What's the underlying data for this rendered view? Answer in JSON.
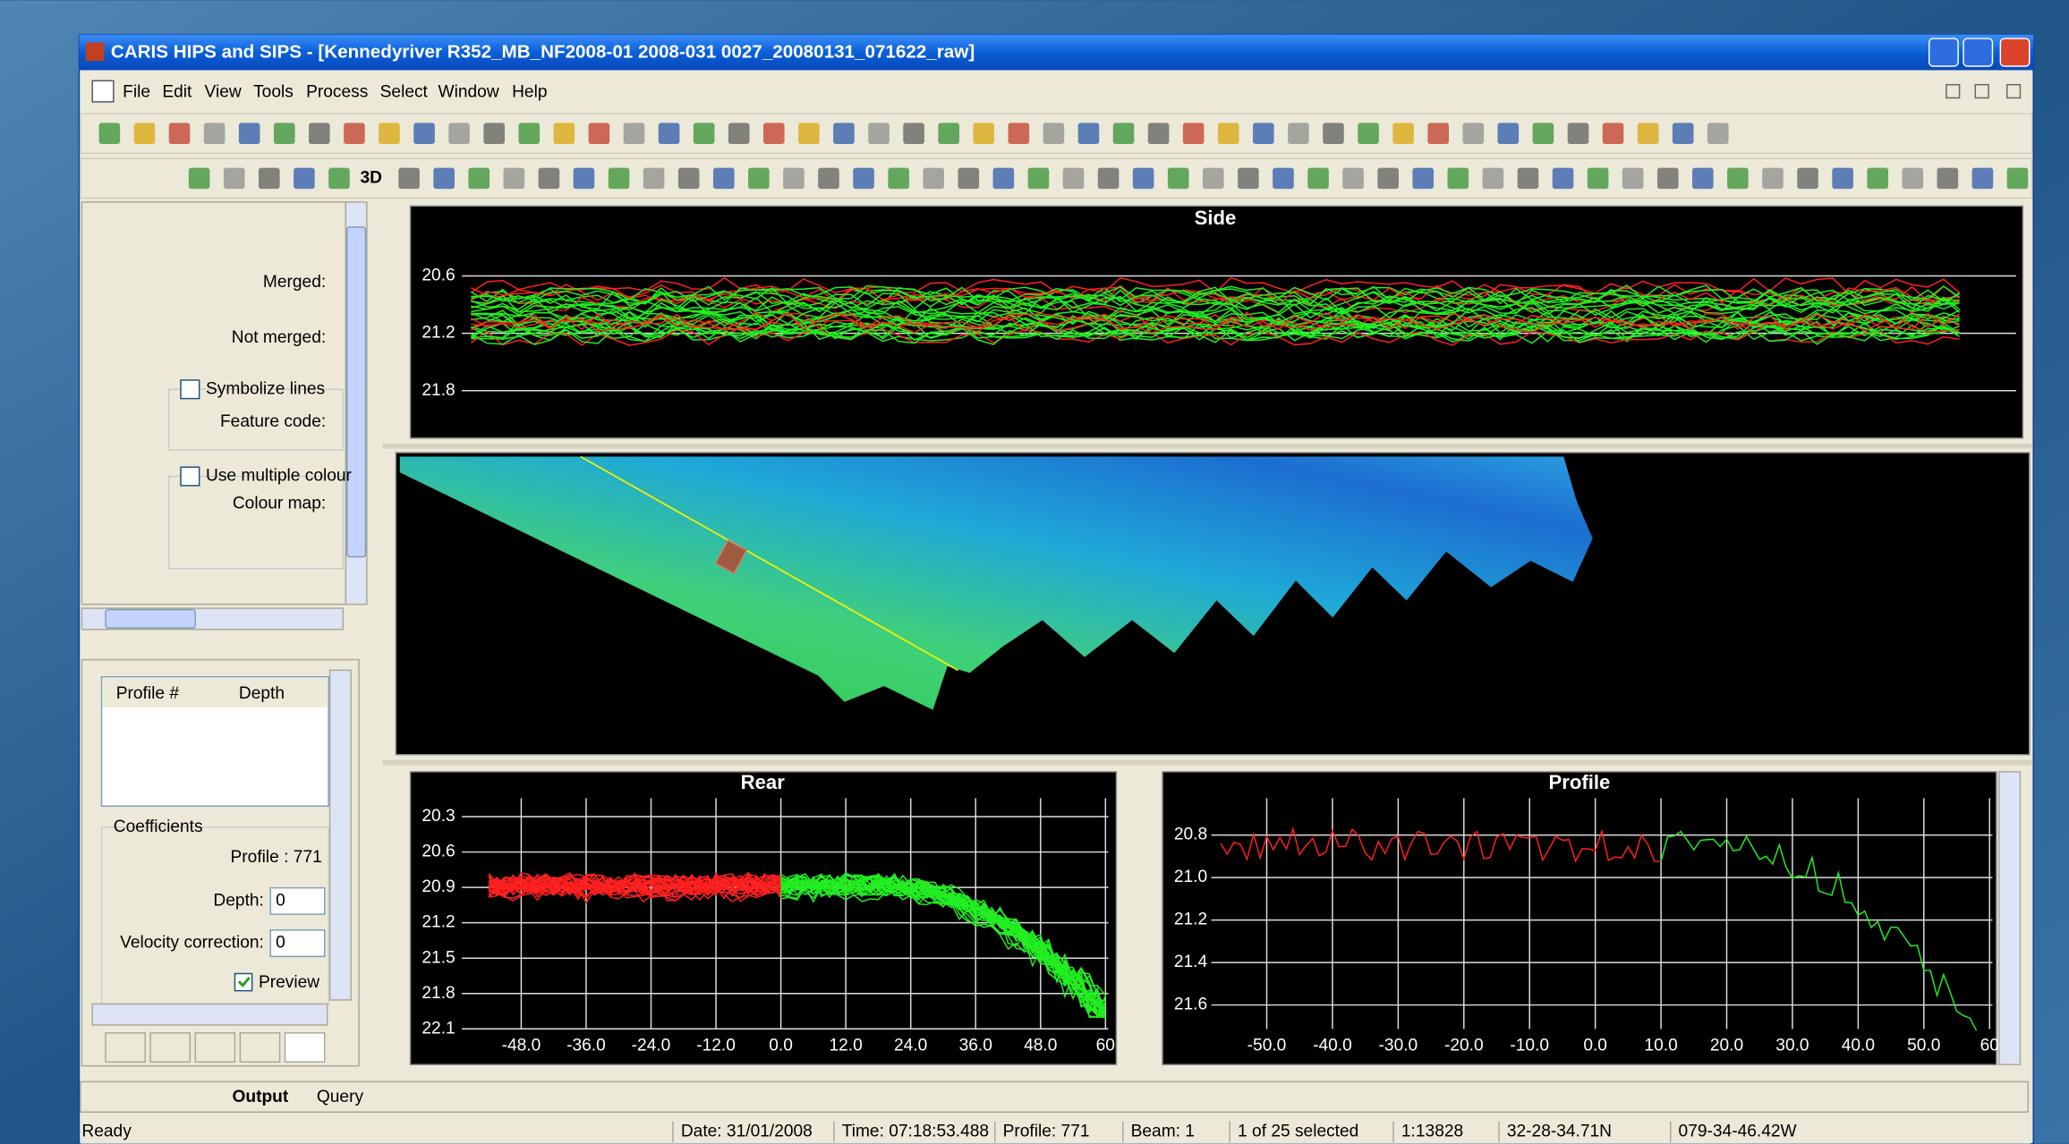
{
  "window": {
    "title": "CARIS HIPS and SIPS - [Kennedyriver R352_MB_NF2008-01 2008-031 0027_20080131_071622_raw]"
  },
  "menu": [
    "File",
    "Edit",
    "View",
    "Tools",
    "Process",
    "Select",
    "Window",
    "Help"
  ],
  "toolbar": {
    "three_d": "3D"
  },
  "left_panel": {
    "merged": "Merged:",
    "not_merged": "Not merged:",
    "symbolize": "Symbolize lines",
    "feature_code": "Feature code:",
    "multiple_colours": "Use multiple colour",
    "colour_map": "Colour map:"
  },
  "profile_panel": {
    "columns": [
      "Profile #",
      "Depth"
    ],
    "coefficients": "Coefficients",
    "profile": "Profile : 771",
    "depth_label": "Depth:",
    "depth_value": "0",
    "velocity_label": "Velocity correction:",
    "velocity_value": "0",
    "preview": "Preview"
  },
  "views": {
    "side": {
      "title": "Side",
      "yticks": [
        "20.6",
        "21.2",
        "21.8"
      ]
    },
    "rear": {
      "title": "Rear",
      "yticks": [
        "20.3",
        "20.6",
        "20.9",
        "21.2",
        "21.5",
        "21.8",
        "22.1"
      ],
      "xticks": [
        "-48.0",
        "-36.0",
        "-24.0",
        "-12.0",
        "0.0",
        "12.0",
        "24.0",
        "36.0",
        "48.0",
        "60"
      ]
    },
    "profile": {
      "title": "Profile",
      "yticks": [
        "20.8",
        "21.0",
        "21.2",
        "21.4",
        "21.6"
      ],
      "xticks": [
        "-50.0",
        "-40.0",
        "-30.0",
        "-20.0",
        "-10.0",
        "0.0",
        "10.0",
        "20.0",
        "30.0",
        "40.0",
        "50.0",
        "60"
      ]
    }
  },
  "tabs": [
    "Output",
    "Query"
  ],
  "status": [
    "Ready",
    "Date: 31/01/2008",
    "Time:  07:18:53.488",
    "Profile: 771",
    "Beam: 1",
    "1 of 25 selected",
    "1:13828",
    "32-28-34.71N",
    "079-34-46.42W"
  ]
}
